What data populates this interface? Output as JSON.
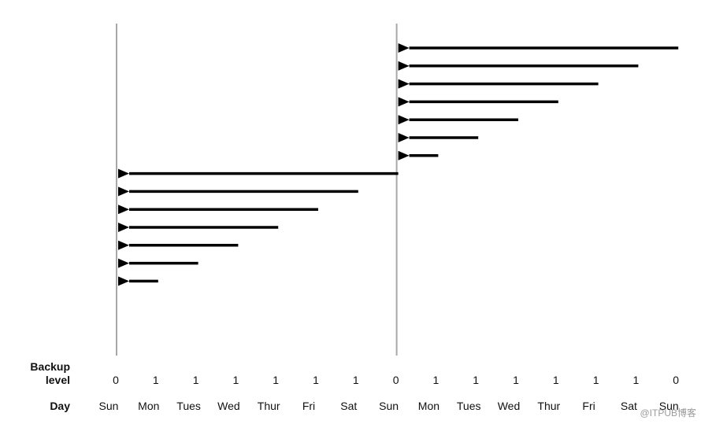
{
  "diagram": {
    "row_labels": {
      "backup_level_line1": "Backup",
      "backup_level_line2": "level",
      "day": "Day"
    },
    "columns": [
      {
        "day": "Sun",
        "level": "0"
      },
      {
        "day": "Mon",
        "level": "1"
      },
      {
        "day": "Tues",
        "level": "1"
      },
      {
        "day": "Wed",
        "level": "1"
      },
      {
        "day": "Thur",
        "level": "1"
      },
      {
        "day": "Fri",
        "level": "1"
      },
      {
        "day": "Sat",
        "level": "1"
      },
      {
        "day": "Sun",
        "level": "0"
      },
      {
        "day": "Mon",
        "level": "1"
      },
      {
        "day": "Tues",
        "level": "1"
      },
      {
        "day": "Wed",
        "level": "1"
      },
      {
        "day": "Thur",
        "level": "1"
      },
      {
        "day": "Fri",
        "level": "1"
      },
      {
        "day": "Sat",
        "level": "1"
      },
      {
        "day": "Sun",
        "level": "0"
      }
    ],
    "full_backup_columns": [
      0,
      7
    ],
    "arrows": [
      {
        "from": 14,
        "to": 7
      },
      {
        "from": 13,
        "to": 7
      },
      {
        "from": 12,
        "to": 7
      },
      {
        "from": 11,
        "to": 7
      },
      {
        "from": 10,
        "to": 7
      },
      {
        "from": 9,
        "to": 7
      },
      {
        "from": 8,
        "to": 7
      },
      {
        "from": 7,
        "to": 0
      },
      {
        "from": 6,
        "to": 0
      },
      {
        "from": 5,
        "to": 0
      },
      {
        "from": 4,
        "to": 0
      },
      {
        "from": 3,
        "to": 0
      },
      {
        "from": 2,
        "to": 0
      },
      {
        "from": 1,
        "to": 0
      }
    ],
    "watermark": "@ITPUB博客"
  }
}
